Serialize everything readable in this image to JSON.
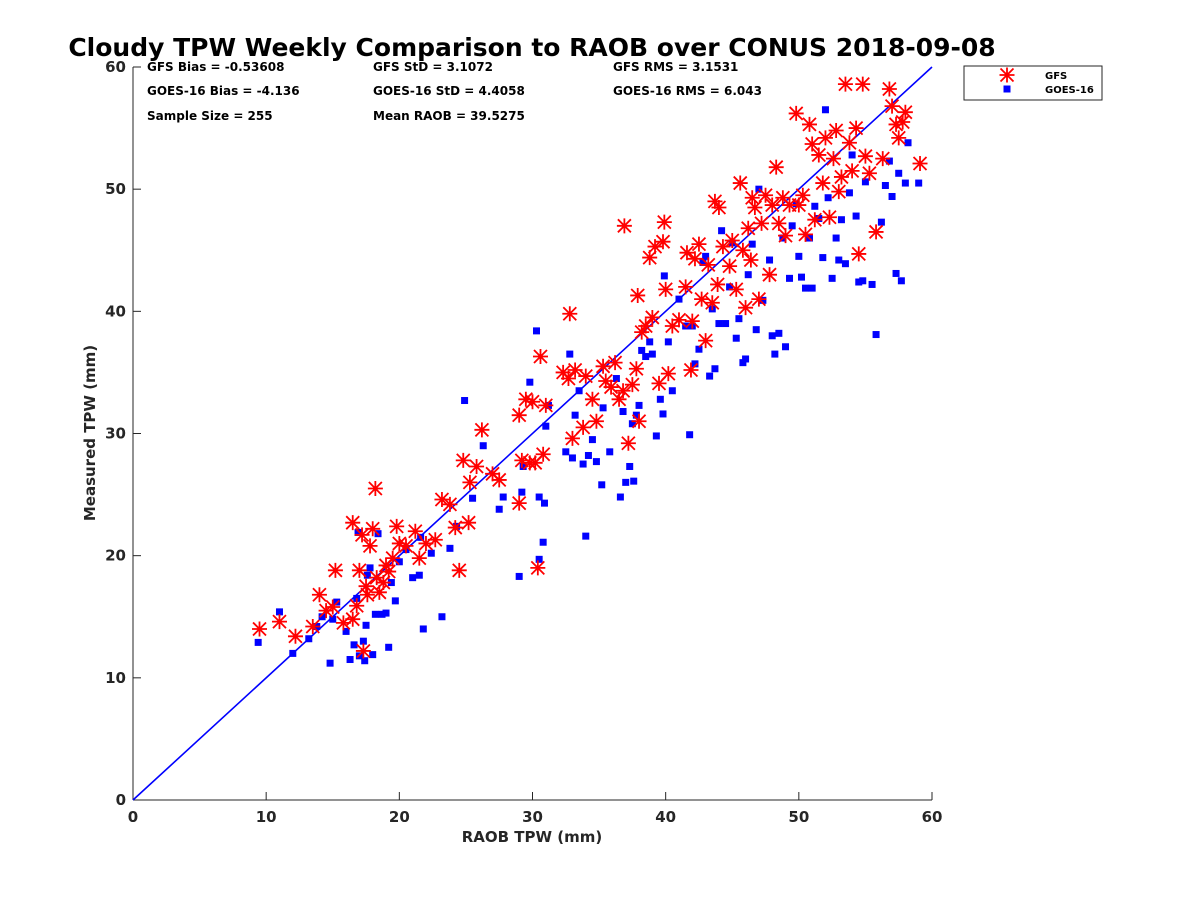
{
  "colors": {
    "gfs": "#ff0000",
    "goes": "#0000ff",
    "line": "#0000ff",
    "axis": "#262626"
  },
  "stats": {
    "gfs_bias": "GFS Bias = -0.53608",
    "gfs_std": "GFS StD = 3.1072",
    "gfs_rms": "GFS RMS = 3.1531",
    "goes_bias": "GOES-16 Bias = -4.136",
    "goes_std": "GOES-16 StD = 4.4058",
    "goes_rms": "GOES-16 RMS = 6.043",
    "sample_size": "Sample Size = 255",
    "mean_raob": "Mean RAOB = 39.5275"
  },
  "chart_data": {
    "type": "scatter",
    "title": "Cloudy TPW Weekly Comparison to RAOB over CONUS 2018-09-08",
    "xlabel": "RAOB TPW (mm)",
    "ylabel": "Measured TPW (mm)",
    "xlim": [
      0,
      60
    ],
    "ylim": [
      0,
      60
    ],
    "xticks": [
      "0",
      "10",
      "20",
      "30",
      "40",
      "50",
      "60"
    ],
    "yticks": [
      "0",
      "10",
      "20",
      "30",
      "40",
      "50",
      "60"
    ],
    "grid": false,
    "legend_position": "top-right outside",
    "reference_line": {
      "x": [
        0,
        60
      ],
      "y": [
        0,
        60
      ]
    },
    "series": [
      {
        "name": "GFS",
        "marker": "asterisk",
        "points": [
          [
            9.5,
            14.0
          ],
          [
            11.0,
            14.6
          ],
          [
            12.2,
            13.4
          ],
          [
            13.5,
            14.2
          ],
          [
            14.0,
            16.8
          ],
          [
            14.5,
            15.5
          ],
          [
            15.0,
            15.8
          ],
          [
            15.2,
            18.8
          ],
          [
            15.8,
            14.5
          ],
          [
            16.5,
            14.8
          ],
          [
            16.5,
            22.7
          ],
          [
            16.8,
            15.9
          ],
          [
            17.0,
            18.8
          ],
          [
            17.2,
            21.7
          ],
          [
            17.3,
            12.2
          ],
          [
            17.5,
            17.5
          ],
          [
            17.6,
            16.8
          ],
          [
            17.8,
            20.8
          ],
          [
            18.0,
            22.2
          ],
          [
            18.2,
            25.5
          ],
          [
            18.3,
            18.2
          ],
          [
            18.5,
            17.0
          ],
          [
            18.8,
            17.8
          ],
          [
            19.0,
            19.2
          ],
          [
            19.2,
            18.7
          ],
          [
            19.5,
            19.8
          ],
          [
            19.8,
            22.4
          ],
          [
            20.0,
            21.0
          ],
          [
            20.5,
            20.8
          ],
          [
            21.2,
            22.0
          ],
          [
            21.5,
            19.8
          ],
          [
            22.0,
            21.0
          ],
          [
            22.7,
            21.3
          ],
          [
            23.2,
            24.6
          ],
          [
            23.8,
            24.2
          ],
          [
            24.2,
            22.3
          ],
          [
            24.5,
            18.8
          ],
          [
            24.8,
            27.8
          ],
          [
            25.2,
            22.7
          ],
          [
            25.3,
            26.0
          ],
          [
            25.8,
            27.3
          ],
          [
            26.2,
            30.3
          ],
          [
            27.0,
            26.7
          ],
          [
            27.5,
            26.2
          ],
          [
            29.0,
            24.3
          ],
          [
            29.0,
            31.5
          ],
          [
            29.2,
            27.8
          ],
          [
            29.5,
            32.8
          ],
          [
            29.8,
            27.6
          ],
          [
            30.0,
            32.6
          ],
          [
            30.2,
            27.6
          ],
          [
            30.4,
            19.0
          ],
          [
            30.6,
            36.3
          ],
          [
            30.8,
            28.3
          ],
          [
            31.0,
            32.3
          ],
          [
            32.3,
            35.0
          ],
          [
            32.7,
            34.5
          ],
          [
            32.8,
            39.8
          ],
          [
            33.0,
            29.6
          ],
          [
            33.2,
            35.2
          ],
          [
            33.8,
            30.5
          ],
          [
            34.0,
            34.7
          ],
          [
            34.5,
            32.8
          ],
          [
            34.8,
            31.0
          ],
          [
            35.3,
            35.5
          ],
          [
            35.5,
            34.3
          ],
          [
            35.9,
            33.8
          ],
          [
            36.2,
            35.8
          ],
          [
            36.5,
            32.8
          ],
          [
            36.8,
            33.5
          ],
          [
            36.9,
            47.0
          ],
          [
            37.2,
            29.2
          ],
          [
            37.5,
            34.0
          ],
          [
            37.8,
            35.3
          ],
          [
            37.9,
            41.3
          ],
          [
            38.0,
            31.0
          ],
          [
            38.2,
            38.3
          ],
          [
            38.5,
            38.8
          ],
          [
            38.8,
            44.4
          ],
          [
            39.0,
            39.5
          ],
          [
            39.2,
            45.3
          ],
          [
            39.5,
            34.1
          ],
          [
            39.8,
            45.7
          ],
          [
            39.9,
            47.3
          ],
          [
            40.0,
            41.8
          ],
          [
            40.2,
            34.9
          ],
          [
            40.5,
            38.8
          ],
          [
            41.0,
            39.3
          ],
          [
            41.5,
            42.0
          ],
          [
            41.6,
            44.8
          ],
          [
            41.9,
            35.2
          ],
          [
            42.0,
            39.2
          ],
          [
            42.2,
            44.3
          ],
          [
            42.5,
            45.5
          ],
          [
            42.7,
            41.0
          ],
          [
            43.0,
            37.6
          ],
          [
            43.2,
            43.8
          ],
          [
            43.5,
            40.7
          ],
          [
            43.7,
            49.0
          ],
          [
            43.9,
            42.2
          ],
          [
            44.0,
            48.5
          ],
          [
            44.3,
            45.3
          ],
          [
            44.8,
            43.7
          ],
          [
            45.0,
            45.8
          ],
          [
            45.3,
            41.8
          ],
          [
            45.6,
            50.5
          ],
          [
            45.8,
            45.0
          ],
          [
            46.0,
            40.3
          ],
          [
            46.2,
            46.8
          ],
          [
            46.4,
            44.2
          ],
          [
            46.5,
            49.3
          ],
          [
            46.7,
            48.5
          ],
          [
            47.0,
            41.0
          ],
          [
            47.2,
            47.2
          ],
          [
            47.5,
            49.5
          ],
          [
            47.8,
            43.0
          ],
          [
            48.0,
            48.7
          ],
          [
            48.3,
            51.8
          ],
          [
            48.5,
            47.2
          ],
          [
            48.8,
            49.3
          ],
          [
            49.0,
            46.2
          ],
          [
            49.3,
            48.7
          ],
          [
            49.8,
            56.2
          ],
          [
            50.0,
            48.7
          ],
          [
            50.3,
            49.5
          ],
          [
            50.5,
            46.3
          ],
          [
            50.8,
            55.3
          ],
          [
            51.0,
            53.7
          ],
          [
            51.2,
            47.5
          ],
          [
            51.5,
            52.8
          ],
          [
            51.8,
            50.5
          ],
          [
            52.0,
            54.2
          ],
          [
            52.3,
            47.7
          ],
          [
            52.6,
            52.5
          ],
          [
            52.8,
            54.8
          ],
          [
            53.0,
            49.8
          ],
          [
            53.2,
            51.0
          ],
          [
            53.5,
            58.6
          ],
          [
            53.8,
            53.8
          ],
          [
            54.0,
            51.5
          ],
          [
            54.3,
            55.0
          ],
          [
            54.5,
            44.7
          ],
          [
            54.8,
            58.6
          ],
          [
            55.0,
            52.7
          ],
          [
            55.3,
            51.3
          ],
          [
            55.8,
            46.5
          ],
          [
            56.3,
            52.5
          ],
          [
            56.8,
            58.2
          ],
          [
            57.0,
            56.8
          ],
          [
            57.3,
            55.3
          ],
          [
            57.5,
            54.2
          ],
          [
            57.8,
            55.5
          ],
          [
            58.0,
            56.3
          ],
          [
            59.1,
            52.1
          ]
        ]
      },
      {
        "name": "GOES-16",
        "marker": "square",
        "points": [
          [
            9.4,
            12.9
          ],
          [
            11.0,
            15.4
          ],
          [
            12.0,
            12.0
          ],
          [
            13.2,
            13.2
          ],
          [
            13.8,
            14.2
          ],
          [
            14.2,
            15.0
          ],
          [
            14.8,
            11.2
          ],
          [
            15.0,
            14.8
          ],
          [
            15.3,
            16.2
          ],
          [
            16.0,
            13.8
          ],
          [
            16.3,
            11.5
          ],
          [
            16.6,
            12.7
          ],
          [
            16.8,
            16.5
          ],
          [
            16.9,
            21.9
          ],
          [
            17.0,
            11.8
          ],
          [
            17.3,
            13.0
          ],
          [
            17.4,
            11.4
          ],
          [
            17.5,
            14.3
          ],
          [
            17.6,
            18.4
          ],
          [
            17.8,
            19.0
          ],
          [
            18.0,
            11.9
          ],
          [
            18.2,
            15.2
          ],
          [
            18.4,
            21.8
          ],
          [
            18.7,
            15.2
          ],
          [
            19.0,
            15.3
          ],
          [
            19.2,
            12.5
          ],
          [
            19.4,
            17.8
          ],
          [
            19.7,
            16.3
          ],
          [
            20.0,
            19.5
          ],
          [
            20.5,
            20.5
          ],
          [
            21.0,
            18.2
          ],
          [
            21.5,
            18.4
          ],
          [
            21.6,
            21.5
          ],
          [
            21.8,
            14.0
          ],
          [
            22.4,
            20.2
          ],
          [
            23.2,
            15.0
          ],
          [
            23.8,
            20.6
          ],
          [
            24.3,
            22.4
          ],
          [
            24.9,
            32.7
          ],
          [
            25.5,
            24.7
          ],
          [
            26.3,
            29.0
          ],
          [
            27.5,
            23.8
          ],
          [
            27.8,
            24.8
          ],
          [
            29.0,
            18.3
          ],
          [
            29.2,
            25.2
          ],
          [
            29.3,
            27.3
          ],
          [
            29.8,
            34.2
          ],
          [
            30.3,
            38.4
          ],
          [
            30.5,
            24.8
          ],
          [
            30.5,
            19.7
          ],
          [
            30.8,
            21.1
          ],
          [
            30.9,
            24.3
          ],
          [
            31.0,
            30.6
          ],
          [
            31.2,
            32.3
          ],
          [
            32.5,
            28.5
          ],
          [
            32.8,
            36.5
          ],
          [
            33.0,
            28.0
          ],
          [
            33.2,
            31.5
          ],
          [
            33.5,
            33.5
          ],
          [
            33.8,
            27.5
          ],
          [
            34.0,
            21.6
          ],
          [
            34.2,
            28.2
          ],
          [
            34.5,
            29.5
          ],
          [
            34.8,
            27.7
          ],
          [
            35.2,
            25.8
          ],
          [
            35.3,
            32.1
          ],
          [
            35.8,
            28.5
          ],
          [
            36.3,
            34.5
          ],
          [
            36.6,
            24.8
          ],
          [
            36.8,
            31.8
          ],
          [
            37.0,
            26.0
          ],
          [
            37.3,
            27.3
          ],
          [
            37.5,
            30.8
          ],
          [
            37.6,
            26.1
          ],
          [
            37.8,
            31.5
          ],
          [
            38.0,
            32.3
          ],
          [
            38.2,
            36.8
          ],
          [
            38.5,
            36.3
          ],
          [
            38.8,
            37.5
          ],
          [
            39.0,
            36.5
          ],
          [
            39.3,
            29.8
          ],
          [
            39.6,
            32.8
          ],
          [
            39.8,
            31.6
          ],
          [
            39.9,
            42.9
          ],
          [
            40.2,
            37.5
          ],
          [
            40.5,
            33.5
          ],
          [
            41.0,
            41.0
          ],
          [
            41.5,
            38.8
          ],
          [
            41.8,
            29.9
          ],
          [
            42.0,
            38.8
          ],
          [
            42.2,
            35.7
          ],
          [
            42.5,
            36.9
          ],
          [
            42.8,
            44.0
          ],
          [
            43.0,
            44.5
          ],
          [
            43.3,
            34.7
          ],
          [
            43.5,
            40.2
          ],
          [
            43.7,
            35.3
          ],
          [
            44.0,
            39.0
          ],
          [
            44.2,
            46.6
          ],
          [
            44.5,
            39.0
          ],
          [
            44.8,
            42.0
          ],
          [
            45.0,
            45.6
          ],
          [
            45.3,
            37.8
          ],
          [
            45.5,
            39.4
          ],
          [
            45.8,
            35.8
          ],
          [
            46.0,
            36.1
          ],
          [
            46.2,
            43.0
          ],
          [
            46.5,
            45.5
          ],
          [
            46.8,
            38.5
          ],
          [
            47.0,
            50.0
          ],
          [
            47.3,
            40.9
          ],
          [
            47.8,
            44.2
          ],
          [
            48.0,
            38.0
          ],
          [
            48.2,
            36.5
          ],
          [
            48.5,
            38.2
          ],
          [
            48.8,
            46.0
          ],
          [
            49.0,
            37.1
          ],
          [
            49.3,
            42.7
          ],
          [
            49.5,
            47.0
          ],
          [
            49.8,
            48.8
          ],
          [
            50.0,
            44.5
          ],
          [
            50.2,
            42.8
          ],
          [
            50.5,
            41.9
          ],
          [
            50.8,
            46.0
          ],
          [
            51.0,
            41.9
          ],
          [
            51.2,
            48.6
          ],
          [
            51.5,
            47.6
          ],
          [
            51.8,
            44.4
          ],
          [
            52.0,
            56.5
          ],
          [
            52.2,
            49.3
          ],
          [
            52.5,
            42.7
          ],
          [
            52.8,
            46.0
          ],
          [
            53.0,
            44.2
          ],
          [
            53.2,
            47.5
          ],
          [
            53.5,
            43.9
          ],
          [
            53.8,
            49.7
          ],
          [
            54.0,
            52.8
          ],
          [
            54.3,
            47.8
          ],
          [
            54.5,
            42.4
          ],
          [
            54.8,
            42.5
          ],
          [
            55.0,
            50.6
          ],
          [
            55.5,
            42.2
          ],
          [
            55.8,
            38.1
          ],
          [
            56.2,
            47.3
          ],
          [
            56.5,
            50.3
          ],
          [
            56.8,
            52.3
          ],
          [
            57.0,
            49.4
          ],
          [
            57.3,
            43.1
          ],
          [
            57.5,
            51.3
          ],
          [
            57.7,
            42.5
          ],
          [
            58.0,
            50.5
          ],
          [
            58.2,
            53.8
          ],
          [
            59.0,
            50.5
          ]
        ]
      }
    ]
  }
}
